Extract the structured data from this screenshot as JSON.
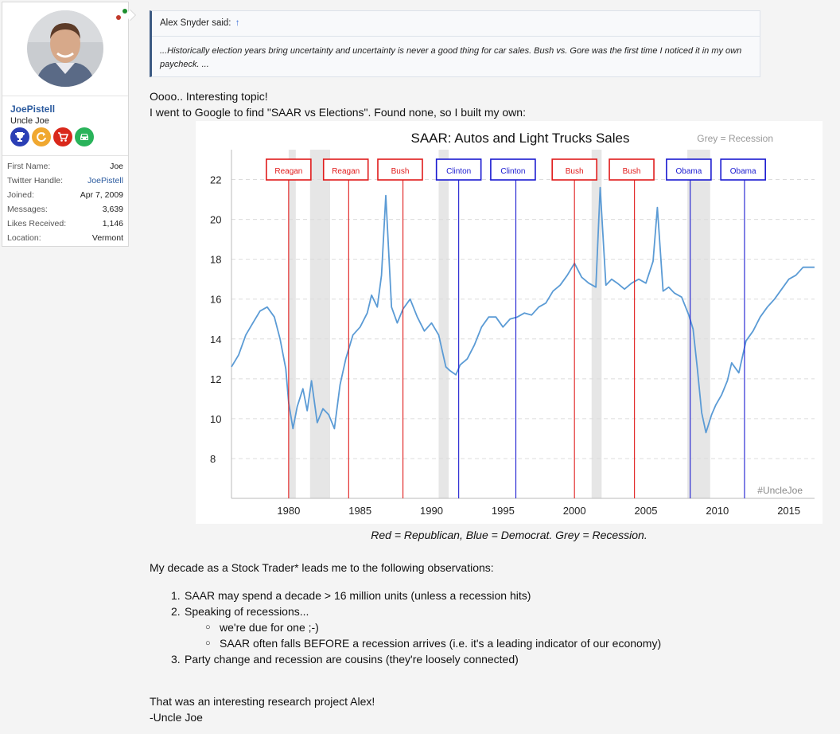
{
  "user": {
    "name": "JoePistell",
    "title": "Uncle Joe",
    "badges": [
      "trophy-icon",
      "refresh-icon",
      "cart-icon",
      "car-icon"
    ],
    "info": [
      {
        "key": "First Name:",
        "value": "Joe"
      },
      {
        "key": "Twitter Handle:",
        "value": "JoePistell"
      },
      {
        "key": "Joined:",
        "value": "Apr 7, 2009"
      },
      {
        "key": "Messages:",
        "value": "3,639"
      },
      {
        "key": "Likes Received:",
        "value": "1,146"
      },
      {
        "key": "Location:",
        "value": "Vermont"
      }
    ]
  },
  "quote": {
    "author": "Alex Snyder said:",
    "arrow": "↑",
    "text": "...Historically election years bring uncertainty and uncertainty is never a good thing for car sales. Bush vs. Gore was the first time I noticed it in my own paycheck. ..."
  },
  "post": {
    "line1": "Oooo.. Interesting topic!",
    "line2": "I went to Google to find \"SAAR vs Elections\". Found none, so I built my own:",
    "caption": "Red = Republican, Blue = Democrat. Grey = Recession.",
    "observations_intro": "My decade as a Stock Trader* leads me to the following observations:",
    "list": [
      {
        "num": "1.",
        "text": "SAAR may spend a decade > 16 million units (unless a recession hits)"
      },
      {
        "num": "2.",
        "text": "Speaking of recessions..."
      },
      {
        "num": "3.",
        "text": "Party change and recession are cousins (they're loosely connected)"
      }
    ],
    "sublist": [
      "we're due for one ;-)",
      "SAAR often falls BEFORE a recession arrives (i.e. it's a leading indicator of our economy)"
    ],
    "closing1": "That was an interesting research project Alex!",
    "closing2": "-Uncle Joe"
  },
  "chart_data": {
    "type": "line",
    "title": "SAAR: Autos and Light Trucks Sales",
    "note": "Grey = Recession",
    "watermark": "#UncleJoe",
    "xlim": [
      1976,
      2016.8
    ],
    "ylim": [
      6,
      23.5
    ],
    "yticks": [
      8,
      10,
      12,
      14,
      16,
      18,
      20,
      22
    ],
    "xticks": [
      1980,
      1985,
      1990,
      1995,
      2000,
      2005,
      2010,
      2015
    ],
    "recessions": [
      [
        1980.0,
        1980.5
      ],
      [
        1981.5,
        1982.9
      ],
      [
        1990.5,
        1991.2
      ],
      [
        2001.2,
        2001.9
      ],
      [
        2007.9,
        2009.5
      ]
    ],
    "elections": [
      {
        "label": "Reagan",
        "party": "Republican",
        "x": 1980.0,
        "label_x": 1980.0
      },
      {
        "label": "Reagan",
        "party": "Republican",
        "x": 1984.2,
        "label_x": 1984.0
      },
      {
        "label": "Bush",
        "party": "Republican",
        "x": 1988.0,
        "label_x": 1987.8
      },
      {
        "label": "Clinton",
        "party": "Democrat",
        "x": 1991.9,
        "label_x": 1991.9
      },
      {
        "label": "Clinton",
        "party": "Democrat",
        "x": 1995.9,
        "label_x": 1995.7
      },
      {
        "label": "Bush",
        "party": "Republican",
        "x": 2000.0,
        "label_x": 2000.0
      },
      {
        "label": "Bush",
        "party": "Republican",
        "x": 2004.2,
        "label_x": 2004.0
      },
      {
        "label": "Obama",
        "party": "Democrat",
        "x": 2008.1,
        "label_x": 2008.0
      },
      {
        "label": "Obama",
        "party": "Democrat",
        "x": 2011.9,
        "label_x": 2011.8
      }
    ],
    "colors": {
      "republican": "#e01b1b",
      "democrat": "#1a1ad0",
      "line": "#5b9bd5",
      "recession": "#e6e6e6"
    },
    "series": [
      {
        "x": [
          1976.0,
          1976.5,
          1977.0,
          1977.5,
          1978.0,
          1978.5,
          1979.0,
          1979.4,
          1979.8,
          1980.0,
          1980.3,
          1980.6,
          1981.0,
          1981.3,
          1981.6,
          1982.0,
          1982.4,
          1982.8,
          1983.2,
          1983.6,
          1984.0,
          1984.5,
          1985.0,
          1985.5,
          1985.8,
          1986.2,
          1986.5,
          1986.8,
          1987.2,
          1987.6,
          1988.0,
          1988.5,
          1989.0,
          1989.5,
          1990.0,
          1990.5,
          1991.0,
          1991.3,
          1991.7,
          1992.0,
          1992.5,
          1993.0,
          1993.5,
          1994.0,
          1994.5,
          1995.0,
          1995.5,
          1996.0,
          1996.5,
          1997.0,
          1997.5,
          1998.0,
          1998.5,
          1999.0,
          1999.5,
          2000.0,
          2000.5,
          2001.0,
          2001.5,
          2001.8,
          2002.2,
          2002.6,
          2003.0,
          2003.5,
          2004.0,
          2004.5,
          2005.0,
          2005.5,
          2005.8,
          2006.2,
          2006.6,
          2007.0,
          2007.5,
          2008.0,
          2008.3,
          2008.6,
          2008.9,
          2009.2,
          2009.6,
          2009.9,
          2010.3,
          2010.7,
          2011.0,
          2011.5,
          2012.0,
          2012.5,
          2013.0,
          2013.5,
          2014.0,
          2014.5,
          2015.0,
          2015.5,
          2016.0,
          2016.5,
          2016.8
        ],
        "y": [
          12.6,
          13.2,
          14.2,
          14.8,
          15.4,
          15.6,
          15.1,
          14.0,
          12.5,
          10.8,
          9.5,
          10.6,
          11.5,
          10.4,
          11.9,
          9.8,
          10.5,
          10.2,
          9.5,
          11.7,
          13.0,
          14.2,
          14.6,
          15.3,
          16.2,
          15.6,
          17.2,
          21.2,
          15.6,
          14.8,
          15.5,
          16.0,
          15.1,
          14.4,
          14.8,
          14.2,
          12.6,
          12.4,
          12.2,
          12.7,
          13.0,
          13.7,
          14.6,
          15.1,
          15.1,
          14.6,
          15.0,
          15.1,
          15.3,
          15.2,
          15.6,
          15.8,
          16.4,
          16.7,
          17.2,
          17.8,
          17.1,
          16.8,
          16.6,
          21.6,
          16.7,
          17.0,
          16.8,
          16.5,
          16.8,
          17.0,
          16.8,
          17.9,
          20.6,
          16.4,
          16.6,
          16.3,
          16.1,
          15.2,
          14.5,
          12.5,
          10.3,
          9.3,
          10.2,
          10.7,
          11.2,
          11.9,
          12.8,
          12.3,
          13.9,
          14.4,
          15.1,
          15.6,
          16.0,
          16.5,
          17.0,
          17.2,
          17.6,
          17.6,
          17.6
        ]
      }
    ]
  }
}
